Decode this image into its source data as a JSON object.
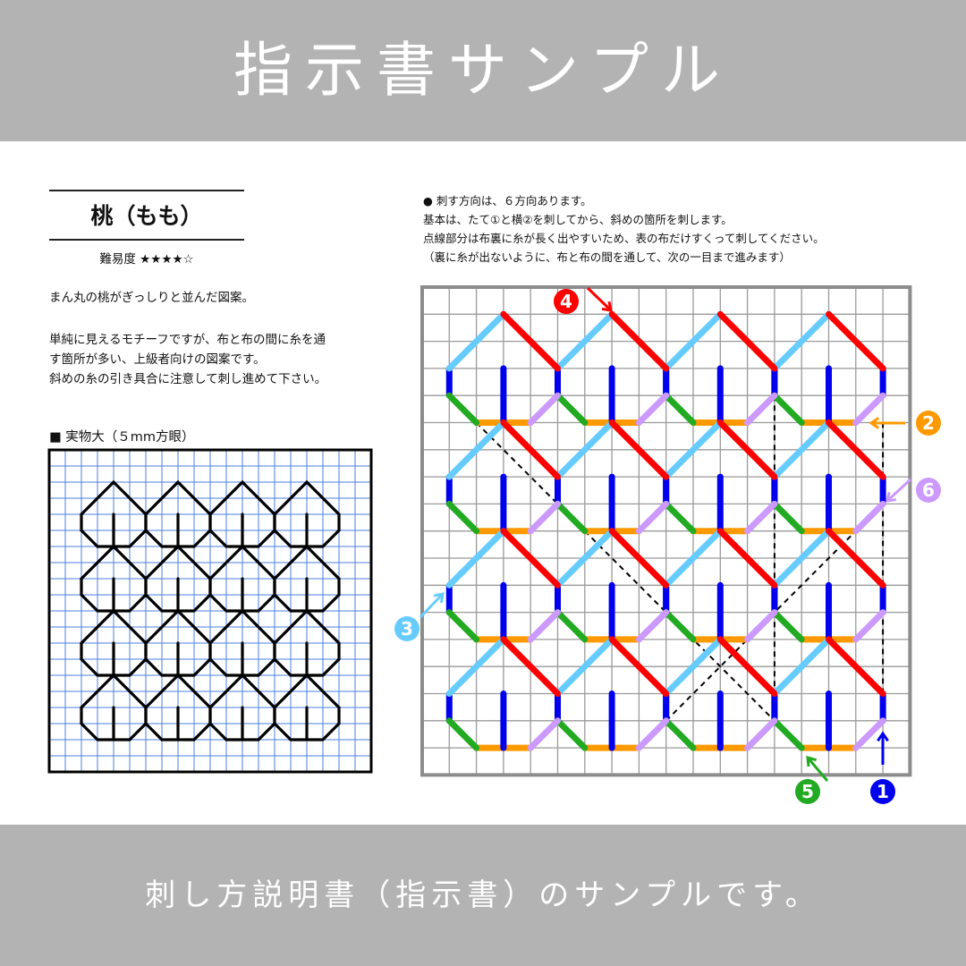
{
  "header": {
    "title": "指示書サンプル"
  },
  "footer": {
    "text": "刺し方説明書（指示書）のサンプルです。"
  },
  "pattern": {
    "title": "桃（もも）",
    "difficulty": "難易度 ★★★★☆",
    "difficulty_stars": 4,
    "description": [
      "まん丸の桃がぎっしりと並んだ図案。",
      "単純に見えるモチーフですが、布と布の間に糸を通",
      "す箇所が多い、上級者向けの図案です。",
      "斜めの糸の引き具合に注意して刺し進めて下さい。"
    ],
    "real_size_label": "■ 実物大（５mm方眼）"
  },
  "instructions": [
    "● 刺す方向は、６方向あります。",
    "基本は、たて①と横②を刺してから、斜めの箇所を刺します。",
    "点線部分は布裏に糸が長く出やすいため、表の布だけすくって刺してください。",
    "（裏に糸が出ないように、布と布の間を通して、次の一目まで進みます）"
  ],
  "stitch_colors": {
    "1": "#0000ee",
    "2": "#ff9900",
    "3": "#66ccff",
    "4": "#ff0000",
    "5": "#22aa22",
    "6": "#cc99ff"
  },
  "markers": [
    {
      "label": "1",
      "color": "#0000ee"
    },
    {
      "label": "2",
      "color": "#ff9900"
    },
    {
      "label": "3",
      "color": "#66ccff"
    },
    {
      "label": "4",
      "color": "#ff0000"
    },
    {
      "label": "5",
      "color": "#22aa22"
    },
    {
      "label": "6",
      "color": "#cc99ff"
    }
  ]
}
